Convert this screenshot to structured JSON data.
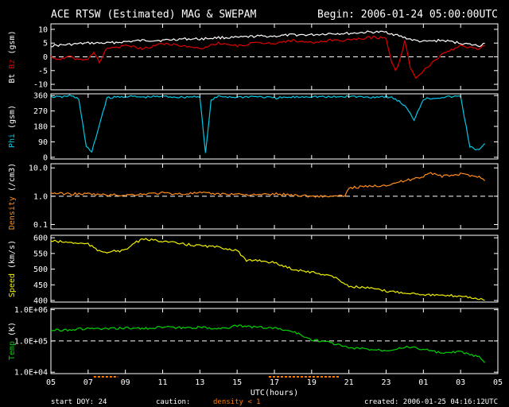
{
  "header": {
    "title": "ACE RTSW (Estimated) MAG & SWEPAM",
    "begin": "Begin: 2006-01-24 05:00:00UTC"
  },
  "footer": {
    "start_doy": "start DOY:  24",
    "caution": "caution:",
    "density_note": "density < 1",
    "created": "created: 2006-01-25 04:16:12UTC"
  },
  "colors": {
    "bt": "#ffffff",
    "bz": "#e00000",
    "phi": "#00c8e6",
    "density": "#ff8c1a",
    "speed": "#f0f000",
    "temp": "#00d200",
    "caution": "#ff7a00"
  },
  "chart_data": {
    "type": "line",
    "x_axis": {
      "label": "UTC(hours)",
      "range": [
        5,
        29
      ],
      "ticks": [
        "05",
        "07",
        "09",
        "11",
        "13",
        "15",
        "17",
        "19",
        "21",
        "23",
        "01",
        "03",
        "05"
      ],
      "tick_hours": [
        5,
        7,
        9,
        11,
        13,
        15,
        17,
        19,
        21,
        23,
        25,
        27,
        29
      ]
    },
    "panels": [
      {
        "id": "mag",
        "ylabel_parts": [
          "Bt",
          "Bz",
          "(gsm)"
        ],
        "scale": "linear",
        "ylim": [
          -12,
          12
        ],
        "yticks": [
          10,
          5,
          0,
          -5,
          -10
        ],
        "ytick_labels": [
          "10",
          "5",
          "0",
          "-5",
          "-10"
        ],
        "reference_line": 0,
        "series": [
          {
            "name": "Bt",
            "color_key": "bt",
            "x": [
              5,
              6,
              7,
              8,
              9,
              10,
              11,
              12,
              13,
              14,
              15,
              16,
              17,
              18,
              19,
              20,
              21,
              22,
              23,
              23.5,
              24,
              24.5,
              25,
              26,
              27,
              28,
              28.3
            ],
            "y": [
              4,
              4.5,
              5,
              5,
              5.5,
              6,
              6,
              6.5,
              6.5,
              7,
              7,
              7.5,
              7.5,
              8,
              8,
              8.5,
              8.5,
              9,
              9,
              8,
              7,
              6,
              5.5,
              6,
              5,
              4,
              5
            ]
          },
          {
            "name": "Bz",
            "color_key": "bz",
            "x": [
              5,
              5.5,
              6,
              6.5,
              7,
              7.3,
              7.6,
              8,
              9,
              10,
              11,
              12,
              13,
              14,
              15,
              16,
              17,
              18,
              19,
              20,
              21,
              22,
              23,
              23.3,
              23.5,
              23.7,
              24,
              24.3,
              24.6,
              25,
              25.5,
              26,
              27,
              28,
              28.3
            ],
            "y": [
              0,
              -1,
              0,
              -1,
              -1,
              2,
              -2,
              3,
              4,
              3,
              5,
              4,
              3,
              5,
              4,
              5,
              5,
              6,
              5,
              6,
              6,
              7,
              7,
              -2,
              -5,
              -2,
              6,
              -4,
              -8,
              -5,
              -2,
              1,
              4,
              3,
              4
            ]
          }
        ]
      },
      {
        "id": "phi",
        "ylabel_parts": [
          "Phi",
          "(gsm)"
        ],
        "scale": "linear",
        "ylim": [
          -10,
          370
        ],
        "yticks": [
          360,
          270,
          180,
          90,
          0
        ],
        "ytick_labels": [
          "360",
          "270",
          "180",
          "90",
          "0"
        ],
        "series": [
          {
            "name": "Phi",
            "color_key": "phi",
            "x": [
              5,
              5.5,
              6,
              6.5,
              6.7,
              6.9,
              7.2,
              8,
              9,
              10,
              11,
              12,
              13,
              13.3,
              13.6,
              14,
              15,
              16,
              17,
              18,
              19,
              20,
              21,
              22,
              23,
              23.5,
              24,
              24.5,
              25,
              26,
              27,
              27.5,
              28,
              28.3
            ],
            "y": [
              355,
              350,
              360,
              340,
              200,
              60,
              30,
              345,
              355,
              350,
              355,
              350,
              355,
              20,
              330,
              355,
              350,
              355,
              345,
              350,
              355,
              350,
              355,
              350,
              355,
              340,
              300,
              220,
              340,
              350,
              355,
              60,
              40,
              80
            ]
          }
        ]
      },
      {
        "id": "density",
        "ylabel_parts": [
          "Density",
          "(/cm3)"
        ],
        "scale": "log",
        "ylim": [
          0.07,
          14
        ],
        "yticks": [
          10,
          1,
          0.1
        ],
        "ytick_labels": [
          "10.0",
          "1.0",
          "0.1"
        ],
        "reference_line": 1,
        "series": [
          {
            "name": "Density",
            "color_key": "density",
            "x": [
              5,
              6,
              7,
              8,
              9,
              10,
              11,
              12,
              13,
              14,
              15,
              16,
              17,
              18,
              19,
              20,
              20.8,
              21,
              22,
              23,
              24,
              25,
              25.3,
              26,
              27,
              28,
              28.3
            ],
            "y": [
              1.3,
              1.2,
              1.2,
              1.1,
              1.1,
              1.2,
              1.3,
              1.2,
              1.3,
              1.2,
              1.2,
              1.1,
              1.2,
              1.1,
              1.0,
              1.0,
              1.0,
              2.0,
              2.2,
              2.5,
              3.5,
              5.0,
              7.0,
              5.0,
              6.0,
              5.0,
              3.5
            ]
          }
        ]
      },
      {
        "id": "speed",
        "ylabel_parts": [
          "Speed",
          "(km/s)"
        ],
        "scale": "linear",
        "ylim": [
          395,
          608
        ],
        "yticks": [
          600,
          550,
          500,
          450,
          400
        ],
        "ytick_labels": [
          "600",
          "550",
          "500",
          "450",
          "400"
        ],
        "series": [
          {
            "name": "Speed",
            "color_key": "speed",
            "x": [
              5,
              6,
              7,
              7.5,
              8,
              9,
              9.5,
              10,
              11,
              12,
              13,
              14,
              15,
              15.5,
              16,
              17,
              18,
              19,
              20,
              20.5,
              21,
              22,
              23,
              24,
              25,
              26,
              27,
              28,
              28.3
            ],
            "y": [
              590,
              585,
              580,
              560,
              555,
              560,
              585,
              595,
              590,
              580,
              575,
              570,
              560,
              525,
              530,
              520,
              500,
              490,
              480,
              465,
              445,
              440,
              430,
              425,
              420,
              415,
              415,
              405,
              400
            ]
          }
        ]
      },
      {
        "id": "temp",
        "ylabel_parts": [
          "Temp",
          "(K)"
        ],
        "scale": "log",
        "ylim": [
          9000,
          1100000
        ],
        "yticks": [
          1000000,
          100000,
          10000
        ],
        "ytick_labels": [
          "1.0E+06",
          "1.0E+05",
          "1.0E+04"
        ],
        "reference_line": 100000,
        "series": [
          {
            "name": "Temp",
            "color_key": "temp",
            "x": [
              5,
              6,
              7,
              8,
              9,
              10,
              11,
              12,
              13,
              14,
              15,
              16,
              17,
              18,
              19,
              20,
              21,
              22,
              23,
              24,
              25,
              26,
              27,
              28,
              28.3
            ],
            "y": [
              220000,
              230000,
              250000,
              240000,
              260000,
              250000,
              280000,
              260000,
              270000,
              250000,
              300000,
              280000,
              260000,
              200000,
              110000,
              90000,
              60000,
              55000,
              50000,
              65000,
              55000,
              40000,
              45000,
              30000,
              20000
            ]
          }
        ]
      }
    ],
    "caution_bands": [
      [
        7.3,
        8.6
      ],
      [
        16.7,
        20.5
      ]
    ]
  }
}
